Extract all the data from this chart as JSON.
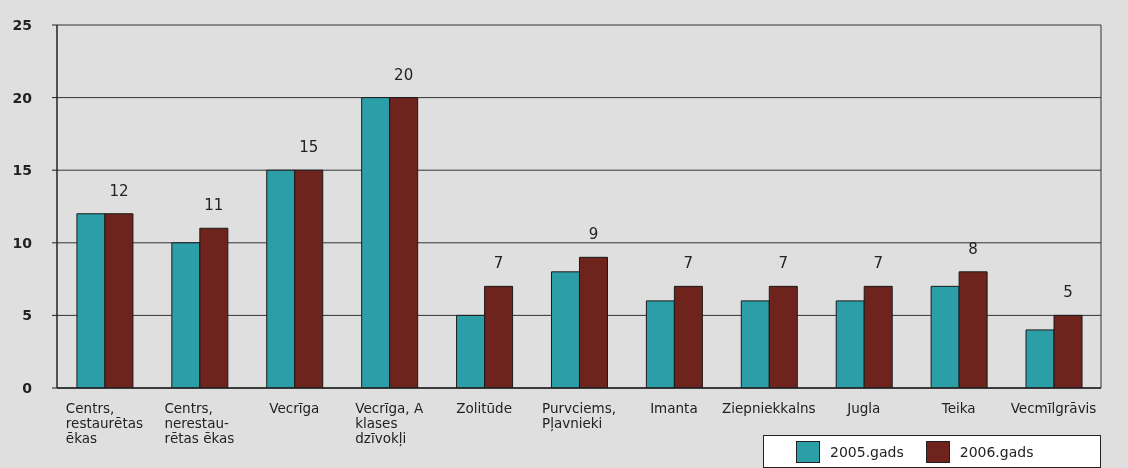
{
  "chart_data": {
    "type": "bar",
    "categories": [
      "Centrs, restaurētas ēkas",
      "Centrs, nerestau-rētas ēkas",
      "Vecrīga",
      "Vecrīga, A klases dzīvokļi",
      "Zolitūde",
      "Purvciems, Pļavnieki",
      "Imanta",
      "Ziepniekkalns",
      "Jugla",
      "Teika",
      "Vecmīlgrāvis"
    ],
    "series": [
      {
        "name": "2005.gads",
        "color": "#2c9ea8",
        "values": [
          12,
          10,
          15,
          20,
          5,
          8,
          6,
          6,
          6,
          7,
          4
        ]
      },
      {
        "name": "2006.gads",
        "color": "#6e241c",
        "values": [
          12,
          11,
          15,
          20,
          7,
          9,
          7,
          7,
          7,
          8,
          5
        ],
        "value_labels": [
          "12",
          "11",
          "15",
          "20",
          "7",
          "9",
          "7",
          "7",
          "7",
          "8",
          "5"
        ]
      }
    ],
    "ylim": [
      0,
      25
    ],
    "yticks": [
      0,
      5,
      10,
      15,
      20,
      25
    ],
    "grid": "y",
    "legend": "bottom right"
  }
}
